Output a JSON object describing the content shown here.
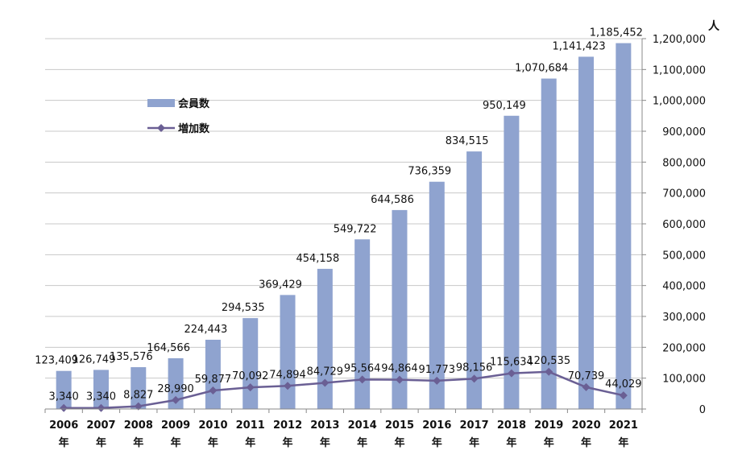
{
  "chart_data": {
    "type": "bar",
    "categories": [
      [
        "2006",
        "年"
      ],
      [
        "2007",
        "年"
      ],
      [
        "2008",
        "年"
      ],
      [
        "2009",
        "年"
      ],
      [
        "2010",
        "年"
      ],
      [
        "2011",
        "年"
      ],
      [
        "2012",
        "年"
      ],
      [
        "2013",
        "年"
      ],
      [
        "2014",
        "年"
      ],
      [
        "2015",
        "年"
      ],
      [
        "2016",
        "年"
      ],
      [
        "2017",
        "年"
      ],
      [
        "2018",
        "年"
      ],
      [
        "2019",
        "年"
      ],
      [
        "2020",
        "年"
      ],
      [
        "2021",
        "年"
      ]
    ],
    "series": [
      {
        "name": "会員数",
        "type": "bar",
        "color": "#8fa3cf",
        "values": [
          123409,
          126749,
          135576,
          164566,
          224443,
          294535,
          369429,
          454158,
          549722,
          644586,
          736359,
          834515,
          950149,
          1070684,
          1141423,
          1185452
        ],
        "labels": [
          "123,409",
          "126,749",
          "135,576",
          "164,566",
          "224,443",
          "294,535",
          "369,429",
          "454,158",
          "549,722",
          "644,586",
          "736,359",
          "834,515",
          "950,149",
          "1,070,684",
          "1,141,423",
          "1,185,452"
        ]
      },
      {
        "name": "増加数",
        "type": "line",
        "color": "#6a5f94",
        "marker": "diamond",
        "values": [
          3340,
          3340,
          8827,
          28990,
          59877,
          70092,
          74894,
          84729,
          95564,
          94864,
          91773,
          98156,
          115634,
          120535,
          70739,
          44029
        ],
        "labels": [
          "3,340",
          "3,340",
          "8,827",
          "28,990",
          "59,877",
          "70,092",
          "74,894",
          "84,729",
          "95,564",
          "94,864",
          "91,773",
          "98,156",
          "115,634",
          "120,535",
          "70,739",
          "44,029"
        ]
      }
    ],
    "y_axis": {
      "position": "right",
      "unit": "人",
      "ylim": [
        0,
        1200000
      ],
      "ticks": [
        0,
        100000,
        200000,
        300000,
        400000,
        500000,
        600000,
        700000,
        800000,
        900000,
        1000000,
        1100000,
        1200000
      ],
      "tick_labels": [
        "0",
        "100,000",
        "200,000",
        "300,000",
        "400,000",
        "500,000",
        "600,000",
        "700,000",
        "800,000",
        "900,000",
        "1,000,000",
        "1,100,000",
        "1,200,000"
      ]
    },
    "grid": true,
    "legend": "upper-left-inside"
  }
}
